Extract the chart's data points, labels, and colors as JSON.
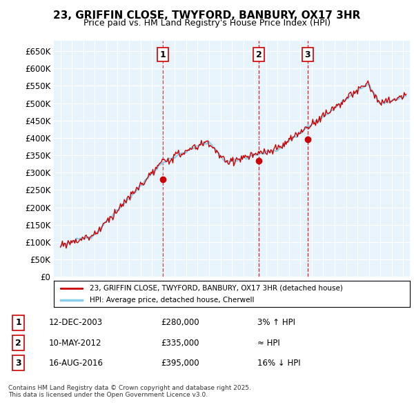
{
  "title": "23, GRIFFIN CLOSE, TWYFORD, BANBURY, OX17 3HR",
  "subtitle": "Price paid vs. HM Land Registry's House Price Index (HPI)",
  "xlabel": "",
  "ylabel": "",
  "ylim": [
    0,
    680000
  ],
  "yticks": [
    0,
    50000,
    100000,
    150000,
    200000,
    250000,
    300000,
    350000,
    400000,
    450000,
    500000,
    550000,
    600000,
    650000
  ],
  "ytick_labels": [
    "£0",
    "£50K",
    "£100K",
    "£150K",
    "£200K",
    "£250K",
    "£300K",
    "£350K",
    "£400K",
    "£450K",
    "£500K",
    "£550K",
    "£600K",
    "£650K"
  ],
  "hpi_color": "#87CEEB",
  "price_color": "#CC0000",
  "marker_color": "#CC0000",
  "dashed_color": "#CC0000",
  "background_color": "#E8F4FC",
  "grid_color": "#FFFFFF",
  "sale_dates": [
    "2003-12-12",
    "2012-05-10",
    "2016-08-16"
  ],
  "sale_prices": [
    280000,
    335000,
    395000
  ],
  "sale_labels": [
    "1",
    "2",
    "3"
  ],
  "sale_note1": "12-DEC-2003    £280,000    3% ↑ HPI",
  "sale_note2": "10-MAY-2012    £335,000    ≈ HPI",
  "sale_note3": "16-AUG-2016    £395,000    16% ↓ HPI",
  "legend_price": "23, GRIFFIN CLOSE, TWYFORD, BANBURY, OX17 3HR (detached house)",
  "legend_hpi": "HPI: Average price, detached house, Cherwell",
  "footnote": "Contains HM Land Registry data © Crown copyright and database right 2025.\nThis data is licensed under the Open Government Licence v3.0."
}
